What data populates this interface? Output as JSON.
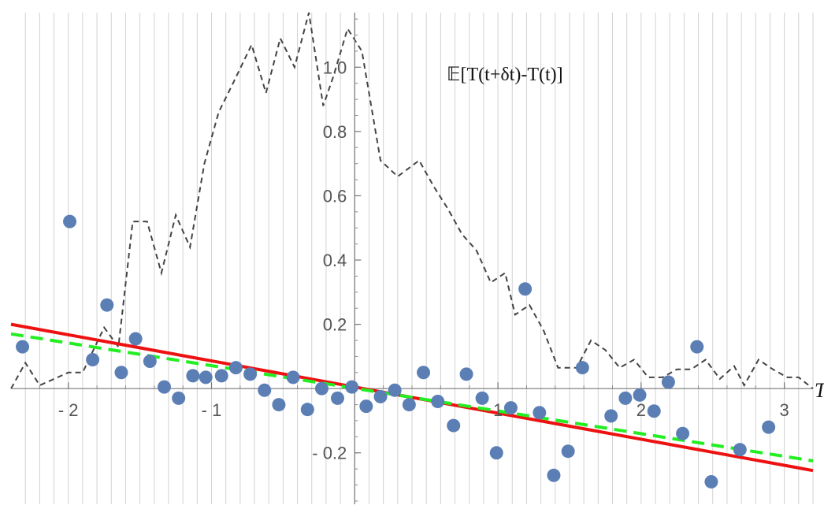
{
  "chart_data": {
    "type": "scatter",
    "title": "𝔼[T(t+δt)-T(t)]",
    "xlabel": "T",
    "ylabel": "",
    "xlim": [
      -2.4,
      3.2
    ],
    "ylim": [
      -0.36,
      1.17
    ],
    "grid": true,
    "x_ticks": [
      {
        "value": -2,
        "label": "- 2"
      },
      {
        "value": -1,
        "label": "- 1"
      },
      {
        "value": 1,
        "label": "1"
      },
      {
        "value": 2,
        "label": "2"
      },
      {
        "value": 3,
        "label": "3"
      }
    ],
    "y_ticks": [
      {
        "value": -0.2,
        "label": "- 0.2"
      },
      {
        "value": 0.2,
        "label": "0.2"
      },
      {
        "value": 0.4,
        "label": "0.4"
      },
      {
        "value": 0.6,
        "label": "0.6"
      },
      {
        "value": 0.8,
        "label": "0.8"
      },
      {
        "value": 1.0,
        "label": "1.0"
      }
    ],
    "series": [
      {
        "kind": "points",
        "color": "#5b7fb5",
        "points": [
          [
            -2.32,
            0.13
          ],
          [
            -1.99,
            0.52
          ],
          [
            -1.73,
            0.26
          ],
          [
            -1.83,
            0.09
          ],
          [
            -1.63,
            0.05
          ],
          [
            -1.53,
            0.155
          ],
          [
            -1.43,
            0.085
          ],
          [
            -1.33,
            0.005
          ],
          [
            -1.23,
            -0.03
          ],
          [
            -1.13,
            0.04
          ],
          [
            -1.04,
            0.035
          ],
          [
            -0.93,
            0.04
          ],
          [
            -0.83,
            0.065
          ],
          [
            -0.73,
            0.045
          ],
          [
            -0.63,
            -0.005
          ],
          [
            -0.53,
            -0.05
          ],
          [
            -0.43,
            0.035
          ],
          [
            -0.33,
            -0.065
          ],
          [
            -0.23,
            0.0
          ],
          [
            -0.12,
            -0.03
          ],
          [
            -0.02,
            0.005
          ],
          [
            0.08,
            -0.055
          ],
          [
            0.18,
            -0.025
          ],
          [
            0.28,
            -0.005
          ],
          [
            0.38,
            -0.05
          ],
          [
            0.48,
            0.05
          ],
          [
            0.58,
            -0.04
          ],
          [
            0.69,
            -0.115
          ],
          [
            0.78,
            0.045
          ],
          [
            0.89,
            -0.03
          ],
          [
            0.99,
            -0.2
          ],
          [
            1.09,
            -0.06
          ],
          [
            1.19,
            0.31
          ],
          [
            1.29,
            -0.075
          ],
          [
            1.39,
            -0.27
          ],
          [
            1.49,
            -0.195
          ],
          [
            1.59,
            0.065
          ],
          [
            1.79,
            -0.085
          ],
          [
            1.89,
            -0.03
          ],
          [
            1.99,
            -0.02
          ],
          [
            2.09,
            -0.07
          ],
          [
            2.19,
            0.02
          ],
          [
            2.29,
            -0.14
          ],
          [
            2.39,
            0.13
          ],
          [
            2.49,
            -0.29
          ],
          [
            2.69,
            -0.19
          ],
          [
            2.89,
            -0.12
          ]
        ]
      },
      {
        "kind": "dashed-line",
        "color": "#444444",
        "points": [
          [
            -2.4,
            0.0
          ],
          [
            -2.3,
            0.08
          ],
          [
            -2.2,
            0.01
          ],
          [
            -2.0,
            0.05
          ],
          [
            -1.9,
            0.05
          ],
          [
            -1.75,
            0.19
          ],
          [
            -1.65,
            0.13
          ],
          [
            -1.55,
            0.52
          ],
          [
            -1.45,
            0.52
          ],
          [
            -1.35,
            0.36
          ],
          [
            -1.25,
            0.54
          ],
          [
            -1.15,
            0.44
          ],
          [
            -1.05,
            0.7
          ],
          [
            -0.95,
            0.86
          ],
          [
            -0.85,
            0.95
          ],
          [
            -0.72,
            1.07
          ],
          [
            -0.62,
            0.92
          ],
          [
            -0.52,
            1.09
          ],
          [
            -0.42,
            1.0
          ],
          [
            -0.32,
            1.17
          ],
          [
            -0.22,
            0.88
          ],
          [
            -0.15,
            0.97
          ],
          [
            -0.05,
            1.12
          ],
          [
            0.05,
            1.05
          ],
          [
            0.18,
            0.71
          ],
          [
            0.3,
            0.66
          ],
          [
            0.45,
            0.71
          ],
          [
            0.55,
            0.63
          ],
          [
            0.65,
            0.56
          ],
          [
            0.75,
            0.48
          ],
          [
            0.85,
            0.43
          ],
          [
            0.95,
            0.33
          ],
          [
            1.05,
            0.36
          ],
          [
            1.12,
            0.23
          ],
          [
            1.22,
            0.26
          ],
          [
            1.32,
            0.18
          ],
          [
            1.42,
            0.065
          ],
          [
            1.55,
            0.065
          ],
          [
            1.65,
            0.15
          ],
          [
            1.75,
            0.12
          ],
          [
            1.85,
            0.065
          ],
          [
            1.95,
            0.09
          ],
          [
            2.05,
            0.035
          ],
          [
            2.15,
            0.035
          ],
          [
            2.25,
            0.06
          ],
          [
            2.35,
            0.06
          ],
          [
            2.45,
            0.09
          ],
          [
            2.55,
            0.03
          ],
          [
            2.65,
            0.07
          ],
          [
            2.72,
            0.01
          ],
          [
            2.82,
            0.09
          ],
          [
            2.92,
            0.06
          ],
          [
            3.02,
            0.035
          ],
          [
            3.1,
            0.035
          ],
          [
            3.2,
            0.0
          ]
        ]
      },
      {
        "kind": "line",
        "color": "#ee1111",
        "points": [
          [
            -2.4,
            0.2
          ],
          [
            3.2,
            -0.255
          ]
        ]
      },
      {
        "kind": "dashed-line",
        "color": "#22ee22",
        "points": [
          [
            -2.4,
            0.17
          ],
          [
            3.2,
            -0.225
          ]
        ]
      }
    ]
  }
}
